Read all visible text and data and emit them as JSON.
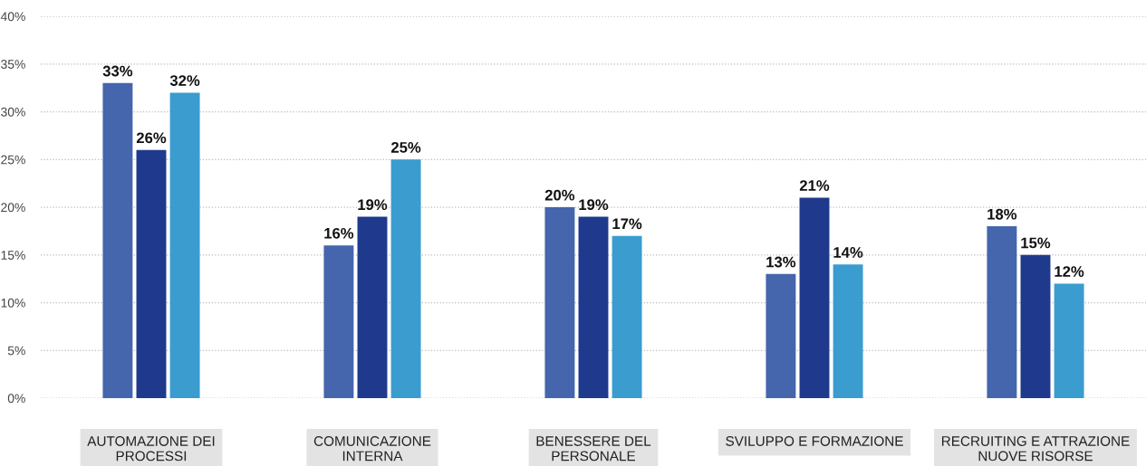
{
  "chart_data": {
    "type": "bar",
    "categories": [
      "AUTOMAZIONE DEI\nPROCESSI",
      "COMUNICAZIONE\nINTERNA",
      "BENESSERE DEL\nPERSONALE",
      "SVILUPPO E FORMAZIONE",
      "RECRUITING E ATTRAZIONE\nNUOVE RISORSE"
    ],
    "series": [
      {
        "color": "#4565ad",
        "values": [
          33,
          16,
          20,
          13,
          18
        ],
        "value_labels": [
          "33%",
          "16%",
          "20%",
          "13%",
          "18%"
        ]
      },
      {
        "color": "#1f3a8c",
        "values": [
          26,
          19,
          19,
          21,
          15
        ],
        "value_labels": [
          "26%",
          "19%",
          "19%",
          "21%",
          "15%"
        ]
      },
      {
        "color": "#3a9ccf",
        "values": [
          32,
          25,
          17,
          14,
          12
        ],
        "value_labels": [
          "32%",
          "25%",
          "17%",
          "14%",
          "12%"
        ]
      }
    ],
    "ylim": [
      0,
      40
    ],
    "yticks": [
      {
        "value": 0,
        "label": "0%"
      },
      {
        "value": 5,
        "label": "5%"
      },
      {
        "value": 10,
        "label": "10%"
      },
      {
        "value": 15,
        "label": "15%"
      },
      {
        "value": 20,
        "label": "20%"
      },
      {
        "value": 25,
        "label": "25%"
      },
      {
        "value": 30,
        "label": "30%"
      },
      {
        "value": 35,
        "label": "35%"
      },
      {
        "value": 40,
        "label": "40%"
      }
    ],
    "grid": "y"
  }
}
